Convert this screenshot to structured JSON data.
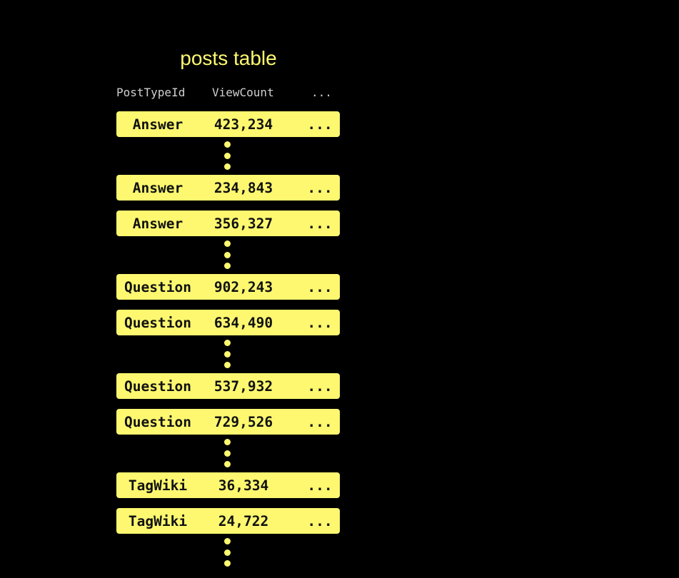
{
  "title": "posts table",
  "columns": [
    "PostTypeId",
    "ViewCount",
    "..."
  ],
  "rows": [
    {
      "type": "Answer",
      "views": "423,234",
      "more": "...",
      "gap_after": true
    },
    {
      "type": "Answer",
      "views": "234,843",
      "more": "...",
      "gap_after": false
    },
    {
      "type": "Answer",
      "views": "356,327",
      "more": "...",
      "gap_after": true
    },
    {
      "type": "Question",
      "views": "902,243",
      "more": "...",
      "gap_after": false
    },
    {
      "type": "Question",
      "views": "634,490",
      "more": "...",
      "gap_after": true
    },
    {
      "type": "Question",
      "views": "537,932",
      "more": "...",
      "gap_after": false
    },
    {
      "type": "Question",
      "views": "729,526",
      "more": "...",
      "gap_after": true
    },
    {
      "type": "TagWiki",
      "views": "36,334",
      "more": "...",
      "gap_after": false
    },
    {
      "type": "TagWiki",
      "views": "24,722",
      "more": "...",
      "gap_after": true
    }
  ],
  "colors": {
    "accent": "#fdf870",
    "background": "#000000",
    "header_text": "#d0d0d0"
  }
}
